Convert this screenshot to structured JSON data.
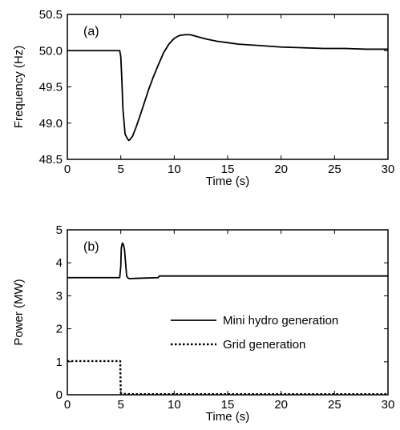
{
  "chart_data": [
    {
      "type": "line",
      "panel_label": "(a)",
      "xlabel": "Time (s)",
      "ylabel": "Frequency (Hz)",
      "xlim": [
        0,
        30
      ],
      "ylim": [
        48.5,
        50.5
      ],
      "xticks": [
        0,
        5,
        10,
        15,
        20,
        25,
        30
      ],
      "yticks": [
        48.5,
        49.0,
        49.5,
        50.0,
        50.5
      ],
      "ytick_labels": [
        "48.5",
        "49.0",
        "49.5",
        "50.0",
        "50.5"
      ],
      "grid": false,
      "series": [
        {
          "style": "solid",
          "x": [
            0,
            4.9,
            5.0,
            5.1,
            5.2,
            5.4,
            5.6,
            5.75,
            5.9,
            6.1,
            6.4,
            6.8,
            7.2,
            7.6,
            8.0,
            8.5,
            9.0,
            9.5,
            10.0,
            10.5,
            11.0,
            11.5,
            12.0,
            13.0,
            14.0,
            15.0,
            16.0,
            18.0,
            20.0,
            22.0,
            24.0,
            26.0,
            28.0,
            30.0
          ],
          "y": [
            50.0,
            50.0,
            49.92,
            49.6,
            49.2,
            48.85,
            48.79,
            48.76,
            48.78,
            48.82,
            48.93,
            49.1,
            49.28,
            49.46,
            49.62,
            49.8,
            49.97,
            50.09,
            50.17,
            50.21,
            50.22,
            50.22,
            50.2,
            50.16,
            50.13,
            50.11,
            50.09,
            50.07,
            50.05,
            50.04,
            50.03,
            50.03,
            50.02,
            50.02
          ]
        }
      ]
    },
    {
      "type": "line",
      "panel_label": "(b)",
      "xlabel": "Time (s)",
      "ylabel": "Power (MW)",
      "xlim": [
        0,
        30
      ],
      "ylim": [
        0,
        5
      ],
      "xticks": [
        0,
        5,
        10,
        15,
        20,
        25,
        30
      ],
      "yticks": [
        0,
        1,
        2,
        3,
        4,
        5
      ],
      "ytick_labels": [
        "0",
        "1",
        "2",
        "3",
        "4",
        "5"
      ],
      "grid": false,
      "legend_position": "center-right",
      "series": [
        {
          "name": "Mini hydro generation",
          "style": "solid",
          "x": [
            0,
            4.9,
            5.0,
            5.05,
            5.15,
            5.25,
            5.35,
            5.45,
            5.55,
            5.65,
            5.8,
            6.5,
            8.5,
            8.6,
            12.0,
            20.0,
            30.0
          ],
          "y": [
            3.55,
            3.55,
            3.9,
            4.45,
            4.6,
            4.55,
            4.4,
            4.0,
            3.6,
            3.55,
            3.52,
            3.53,
            3.55,
            3.6,
            3.6,
            3.6,
            3.6
          ]
        },
        {
          "name": "Grid generation",
          "style": "dotted",
          "x": [
            0,
            4.95,
            4.97,
            5.0,
            5.1,
            6.0,
            10.0,
            20.0,
            30.0
          ],
          "y": [
            1.02,
            1.02,
            0.6,
            0.05,
            0.03,
            0.02,
            0.02,
            0.02,
            0.02
          ]
        }
      ]
    }
  ]
}
